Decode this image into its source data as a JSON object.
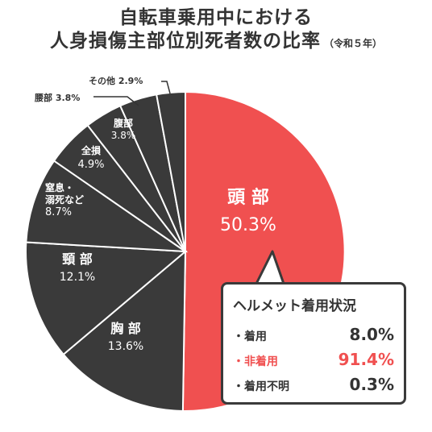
{
  "title": {
    "line1": "自転車乗用中における",
    "line2": "人身損傷主部位別死者数の比率",
    "suffix": "（令和５年）"
  },
  "colors": {
    "highlight": "#f05050",
    "slice": "#3a3a3a",
    "separator": "#ffffff",
    "text_dark": "#333333"
  },
  "chart_data": {
    "type": "pie",
    "unit": "%",
    "slices": [
      {
        "label": "頭 部",
        "value": 50.3,
        "display": "50.3%",
        "highlight": true
      },
      {
        "label": "胸 部",
        "value": 13.6,
        "display": "13.6%"
      },
      {
        "label": "頸 部",
        "value": 12.1,
        "display": "12.1%"
      },
      {
        "label": "窒息・溺死など",
        "value": 8.7,
        "display": "8.7%"
      },
      {
        "label": "全損",
        "value": 4.9,
        "display": "4.9%"
      },
      {
        "label": "腹部",
        "value": 3.8,
        "display": "3.8%"
      },
      {
        "label": "腰部",
        "value": 3.8,
        "display": "3.8%"
      },
      {
        "label": "その他",
        "value": 2.9,
        "display": "2.9%"
      }
    ],
    "inside_labels": {
      "head": {
        "name": "頭 部",
        "pct": "50.3%"
      },
      "chest": {
        "name": "胸 部",
        "pct": "13.6%"
      },
      "neck": {
        "name": "頸 部",
        "pct": "12.1%"
      },
      "choke_line1": "窒息・",
      "choke_line2": "溺死など",
      "choke_pct": "8.7%",
      "whole": {
        "name": "全損",
        "pct": "4.9%"
      },
      "abdomen": {
        "name": "腹部",
        "pct": "3.8%"
      }
    },
    "outside_labels": {
      "waist": "腰部 3.8%",
      "other": "その他 2.9%"
    }
  },
  "helmet_box": {
    "title": "ヘルメット着用状況",
    "rows": [
      {
        "label": "・着用",
        "value": "8.0%",
        "highlight": false
      },
      {
        "label": "・非着用",
        "value": "91.4%",
        "highlight": true
      },
      {
        "label": "・着用不明",
        "value": "0.3%",
        "highlight": false
      }
    ]
  }
}
